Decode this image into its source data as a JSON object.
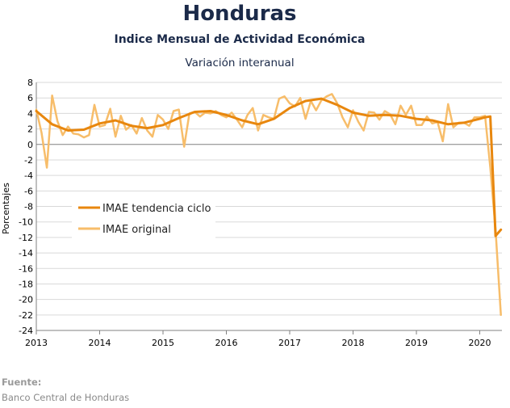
{
  "header": {
    "title": "Honduras",
    "subtitle": "Indice Mensual de  Actividad Económica",
    "subtitle2": "Variación interanual"
  },
  "footer": {
    "source_label": "Fuente:",
    "source_text": "Banco Central de Honduras"
  },
  "chart_data": {
    "type": "line",
    "ylabel": "Porcentajes",
    "ylim": [
      -24,
      8
    ],
    "yticks": [
      "8",
      "6",
      "4",
      "2",
      "0",
      "-2",
      "-4",
      "-6",
      "-8",
      "-10",
      "-12",
      "-14",
      "-16",
      "-18",
      "-20",
      "-22",
      "-24"
    ],
    "xlim": [
      2013,
      2020.35
    ],
    "xticks": [
      "2013",
      "2014",
      "2015",
      "2016",
      "2017",
      "2018",
      "2019",
      "2020"
    ],
    "grid": true,
    "legend": "left",
    "colors": {
      "trend": "#e8870e",
      "original": "#f7bd6a"
    },
    "series": [
      {
        "name": "IMAE tendencia ciclo",
        "x": [
          "2013-01",
          "2013-04",
          "2013-07",
          "2013-10",
          "2014-01",
          "2014-04",
          "2014-07",
          "2014-10",
          "2015-01",
          "2015-04",
          "2015-07",
          "2015-10",
          "2016-01",
          "2016-04",
          "2016-07",
          "2016-10",
          "2017-01",
          "2017-04",
          "2017-07",
          "2017-10",
          "2018-01",
          "2018-04",
          "2018-07",
          "2018-10",
          "2019-01",
          "2019-04",
          "2019-07",
          "2019-10",
          "2020-01",
          "2020-02",
          "2020-03",
          "2020-04",
          "2020-05"
        ],
        "values": [
          4.3,
          2.6,
          1.8,
          1.9,
          2.7,
          3.1,
          2.4,
          2.1,
          2.5,
          3.4,
          4.2,
          4.3,
          3.8,
          3.1,
          2.6,
          3.3,
          4.7,
          5.6,
          5.9,
          5.1,
          4.1,
          3.7,
          3.8,
          3.7,
          3.3,
          3.1,
          2.6,
          2.8,
          3.3,
          3.5,
          3.6,
          -11.8,
          -11.0
        ]
      },
      {
        "name": "IMAE original",
        "x": [
          "2013-01",
          "2013-02",
          "2013-03",
          "2013-04",
          "2013-05",
          "2013-06",
          "2013-07",
          "2013-08",
          "2013-09",
          "2013-10",
          "2013-11",
          "2013-12",
          "2014-01",
          "2014-02",
          "2014-03",
          "2014-04",
          "2014-05",
          "2014-06",
          "2014-07",
          "2014-08",
          "2014-09",
          "2014-10",
          "2014-11",
          "2014-12",
          "2015-01",
          "2015-02",
          "2015-03",
          "2015-04",
          "2015-05",
          "2015-06",
          "2015-07",
          "2015-08",
          "2015-09",
          "2015-10",
          "2015-11",
          "2015-12",
          "2016-01",
          "2016-02",
          "2016-03",
          "2016-04",
          "2016-05",
          "2016-06",
          "2016-07",
          "2016-08",
          "2016-09",
          "2016-10",
          "2016-11",
          "2016-12",
          "2017-01",
          "2017-02",
          "2017-03",
          "2017-04",
          "2017-05",
          "2017-06",
          "2017-07",
          "2017-08",
          "2017-09",
          "2017-10",
          "2017-11",
          "2017-12",
          "2018-01",
          "2018-02",
          "2018-03",
          "2018-04",
          "2018-05",
          "2018-06",
          "2018-07",
          "2018-08",
          "2018-09",
          "2018-10",
          "2018-11",
          "2018-12",
          "2019-01",
          "2019-02",
          "2019-03",
          "2019-04",
          "2019-05",
          "2019-06",
          "2019-07",
          "2019-08",
          "2019-09",
          "2019-10",
          "2019-11",
          "2019-12",
          "2020-01",
          "2020-02",
          "2020-03",
          "2020-04",
          "2020-05"
        ],
        "values": [
          4.5,
          1.5,
          -3.0,
          6.3,
          3.0,
          1.2,
          2.3,
          1.4,
          1.3,
          0.9,
          1.2,
          5.1,
          2.3,
          2.5,
          4.6,
          1.0,
          3.7,
          1.9,
          2.5,
          1.4,
          3.4,
          1.8,
          1.0,
          3.8,
          3.2,
          2.0,
          4.3,
          4.5,
          -0.3,
          4.0,
          4.2,
          3.6,
          4.1,
          4.0,
          4.3,
          3.8,
          3.5,
          4.1,
          3.2,
          2.2,
          3.8,
          4.7,
          1.8,
          3.8,
          3.5,
          3.3,
          5.9,
          6.2,
          5.3,
          4.9,
          6.0,
          3.3,
          5.6,
          4.4,
          5.7,
          6.2,
          6.5,
          5.3,
          3.5,
          2.2,
          4.4,
          2.9,
          1.8,
          4.2,
          4.1,
          3.2,
          4.3,
          3.9,
          2.6,
          5.0,
          3.8,
          5.0,
          2.5,
          2.5,
          3.6,
          2.7,
          2.9,
          0.4,
          5.2,
          2.2,
          2.8,
          2.8,
          2.4,
          3.5,
          3.5,
          3.7,
          -3.0,
          -11.0,
          -22.0
        ]
      }
    ]
  }
}
